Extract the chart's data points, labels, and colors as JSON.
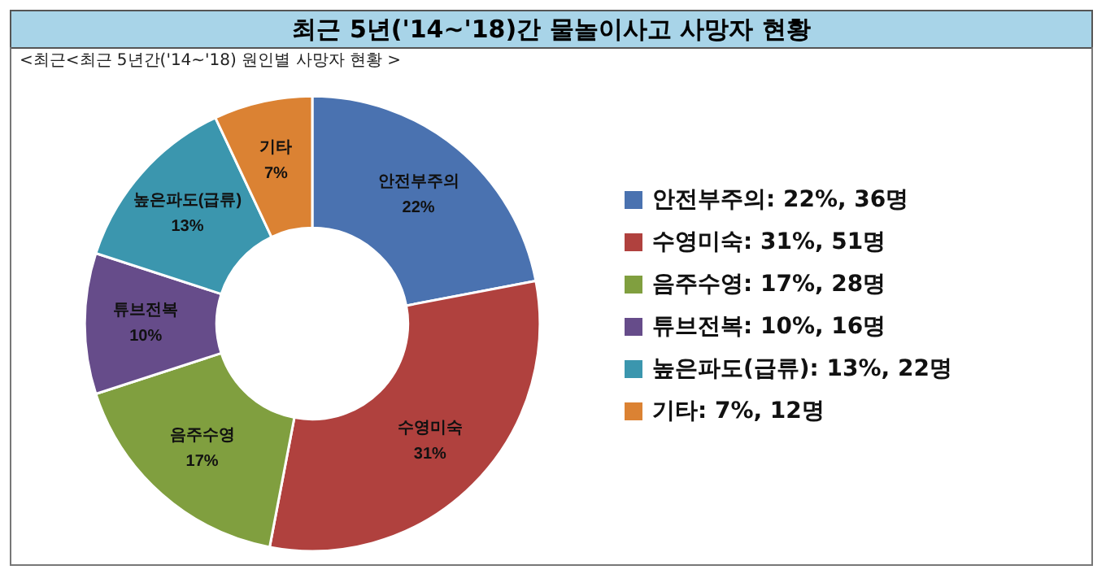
{
  "chart_data": {
    "type": "donut",
    "title": "최근 5년('14~'18)간 물놀이사고 사망자 현황",
    "subtitle": "<최근<최근 5년간('14~'18) 원인별 사망자 현황 >",
    "categories": [
      "안전부주의: 22%, 36명",
      "수영미숙: 31%, 51명",
      "음주수영: 17%, 28명",
      "튜브전복: 10%, 16명",
      "높은파도(급류): 13%, 22명",
      "기타: 7%, 12명"
    ],
    "values": [
      22,
      31,
      17,
      10,
      13,
      7
    ],
    "colors": [
      "#4a72b0",
      "#b0413e",
      "#809f3f",
      "#664c8a",
      "#3b96ae",
      "#db8233"
    ],
    "value_labels": [
      "안전부주의\n22%",
      "수영미숙\n31%",
      "음주수영\n17%",
      "튜브전복\n10%",
      "높은파도(급류)\n13%",
      "기타\n7%"
    ],
    "legend": "right"
  }
}
